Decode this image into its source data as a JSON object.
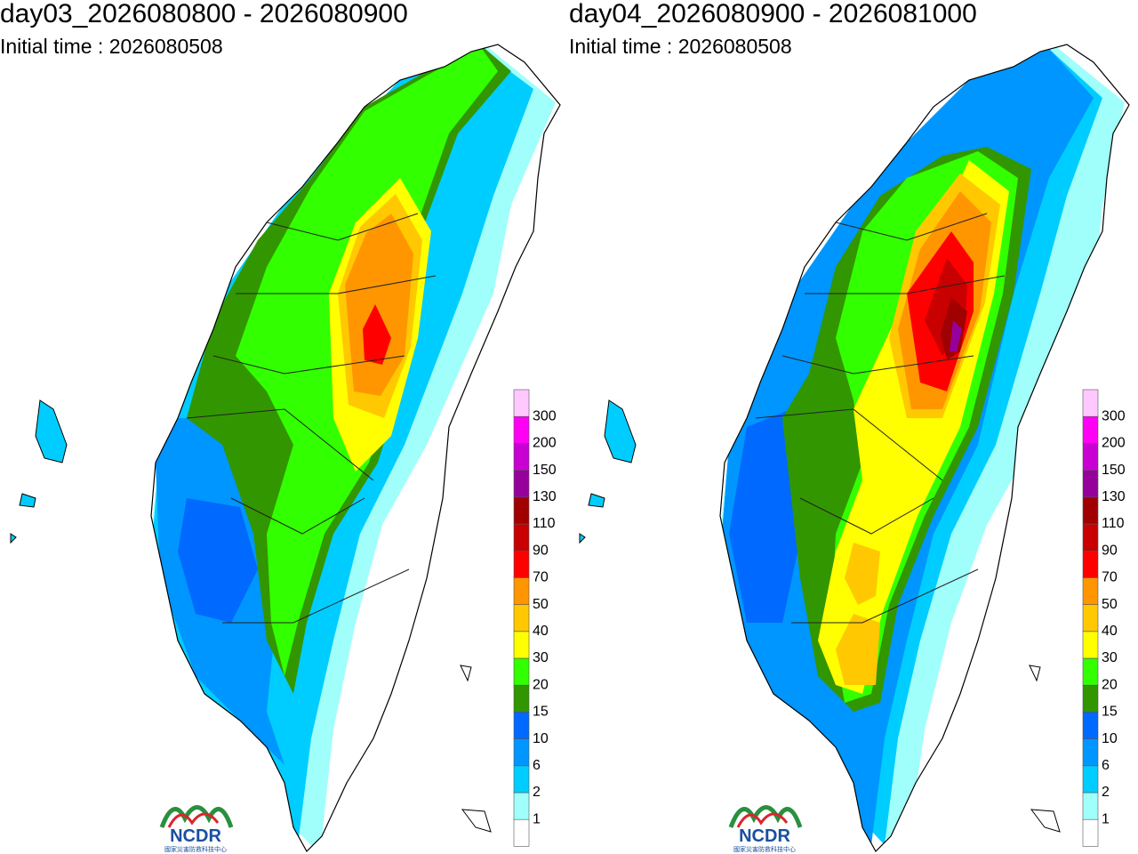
{
  "panels": [
    {
      "title": "day03_2026080800 - 2026080900",
      "initial_time": "Initial time : 2026080508"
    },
    {
      "title": "day04_2026080900 - 2026081000",
      "initial_time": "Initial time : 2026080508"
    }
  ],
  "legend": {
    "labels": [
      1,
      2,
      6,
      10,
      15,
      20,
      30,
      40,
      50,
      70,
      90,
      110,
      130,
      150,
      200,
      300
    ],
    "colors": [
      "#ffffff",
      "#a0fffa",
      "#00cdff",
      "#0096ff",
      "#0069ff",
      "#329600",
      "#32ff00",
      "#ffff00",
      "#ffc800",
      "#ff9600",
      "#ff0000",
      "#c80000",
      "#a00000",
      "#96009b",
      "#c800d2",
      "#ff00f5",
      "#ffc8ff"
    ]
  },
  "logo": {
    "name": "NCDR",
    "subtitle": "國家災害防救科技中心"
  }
}
